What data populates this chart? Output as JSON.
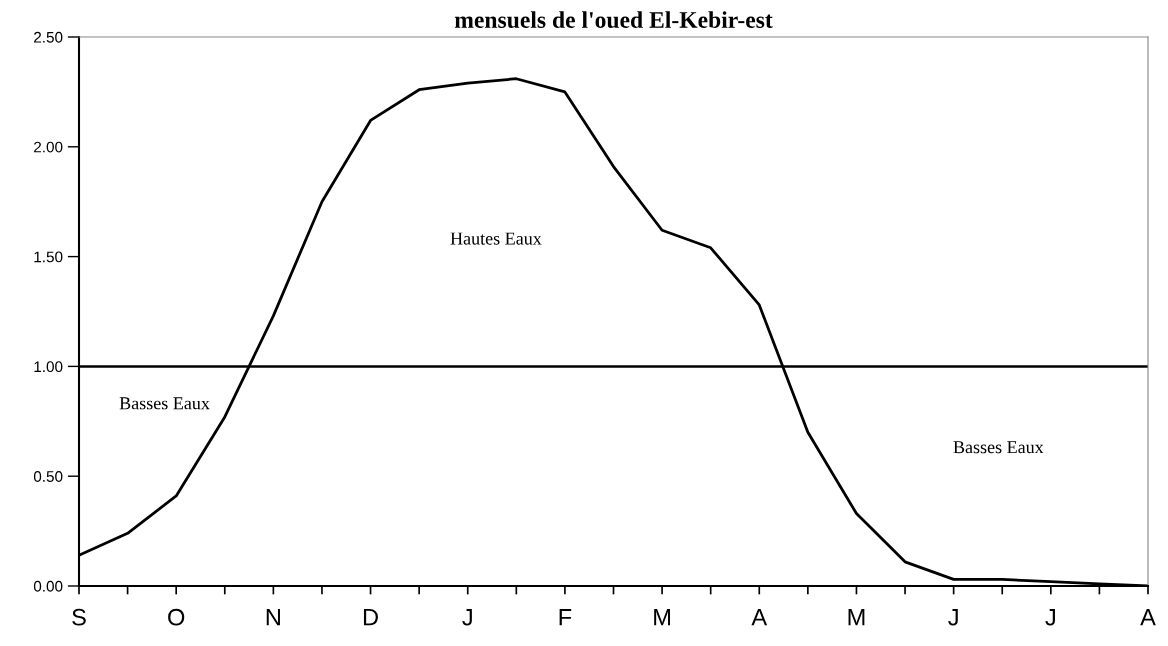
{
  "chart_data": {
    "type": "line",
    "title": "mensuels de l'oued El-Kebir-est",
    "categories": [
      "S",
      null,
      "O",
      null,
      "N",
      null,
      "D",
      null,
      "J",
      null,
      "F",
      null,
      "M",
      null,
      "A",
      null,
      "M",
      null,
      "J",
      null,
      "J",
      null,
      "A"
    ],
    "series": [
      {
        "color": "#000000",
        "values": [
          0.14,
          0.24,
          0.41,
          0.77,
          1.23,
          1.75,
          2.12,
          2.26,
          2.29,
          2.31,
          2.25,
          1.91,
          1.62,
          1.54,
          1.28,
          0.7,
          0.33,
          0.11,
          0.03,
          0.03,
          0.02,
          0.01,
          0.0
        ]
      }
    ],
    "ylim": [
      0,
      2.5
    ],
    "yticks": [
      {
        "value": 0,
        "label": "0.00"
      },
      {
        "value": 0.5,
        "label": "0.50"
      },
      {
        "value": 1,
        "label": "1.00"
      },
      {
        "value": 1.5,
        "label": "1.50"
      },
      {
        "value": 2,
        "label": "2.00"
      },
      {
        "value": 2.5,
        "label": "2.50"
      }
    ],
    "ref_lines": [
      {
        "axis": "y",
        "value": 1,
        "color": "#000000"
      }
    ],
    "annotations": [
      "Hautes Eaux",
      "Basses Eaux",
      "Basses Eaux"
    ],
    "grid": false,
    "legend": false,
    "marker": "none",
    "line_style": "solid"
  }
}
